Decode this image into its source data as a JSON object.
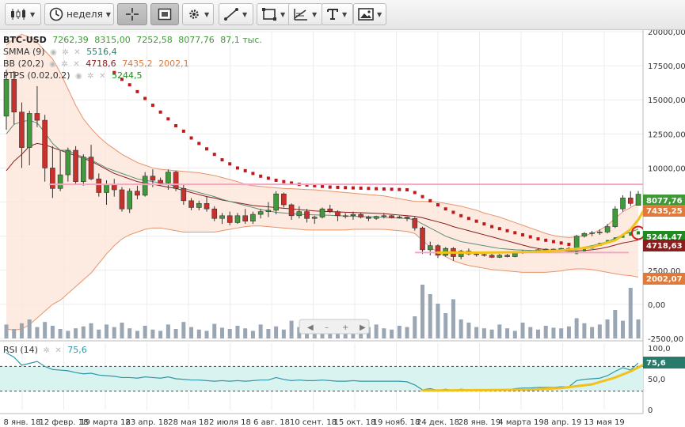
{
  "toolbar": {
    "period_label": "неделя",
    "icons": [
      "candles-icon",
      "clock-icon",
      "crosshair-icon",
      "frame-icon",
      "gear-icon",
      "pencil-line-icon",
      "rectangle-icon",
      "fibonacci-icon",
      "text-tool-icon",
      "image-icon"
    ]
  },
  "legend": {
    "symbol": "BTC-USD",
    "open": "7262,39",
    "high": "8315,00",
    "low": "7252,58",
    "close": "8077,76",
    "volume": "87,1 тыс.",
    "smma_name": "SMMA (9)",
    "smma_value": "5516,4",
    "bb_name": "BB (20,2)",
    "bb_mid": "4718,6",
    "bb_upper": "7435,2",
    "bb_lower": "2002,1",
    "ptps_name": "PTPS (0.02,0.2)",
    "ptps_value": "5244,5",
    "rsi_name": "RSI (14)",
    "rsi_value": "75,6"
  },
  "price_axis": {
    "ticks": [
      "20000,00",
      "17500,00",
      "15000,00",
      "12500,00",
      "10000,00",
      "7500,00",
      "5000,00",
      "2500,00",
      "0,00",
      "-2500,00"
    ],
    "tags": [
      {
        "text": "8077,76",
        "color": "#3d9a35"
      },
      {
        "text": "7435,25",
        "color": "#e07a3a"
      },
      {
        "text": "5244,47",
        "color": "#1f8a1f"
      },
      {
        "text": "4718,63",
        "color": "#8a1d1d"
      },
      {
        "text": "2002,07",
        "color": "#e07a3a"
      }
    ]
  },
  "rsi_axis": {
    "ticks": [
      "100,0",
      "50,0",
      "0"
    ],
    "tag": "75,6"
  },
  "time_axis": [
    "8 янв. 18",
    "12 февр. 18",
    "19 марта 18",
    "23 апр. 18",
    "28 мая 18",
    "2 июля 18",
    "6 авг. 18",
    "10 сент. 18",
    "15 окт. 18",
    "19 нояб. 18",
    "24 дек. 18",
    "28 янв. 19",
    "4 марта 19",
    "8 апр. 19",
    "13 мая 19"
  ],
  "colors": {
    "up": "#3e9a3a",
    "down": "#c9302c",
    "bb_band": "#e8936b",
    "bb_fill": "#fde6da",
    "bb_mid": "#8a1d1d",
    "smma": "#5a8f7a",
    "volume": "#9aa6b4",
    "rsi": "#2f97a8",
    "rsi_fill": "#d8f3f0",
    "pink_line": "#f4a7c4",
    "trend": "#f2c21b"
  },
  "chart_data": {
    "type": "candlestick",
    "title": "BTC-USD",
    "interval": "неделя",
    "ylim": [
      -2500,
      20000
    ],
    "candles": [
      [
        13800,
        17200,
        12800,
        16500
      ],
      [
        16500,
        17100,
        13200,
        14100
      ],
      [
        14100,
        14800,
        10000,
        11500
      ],
      [
        11500,
        14200,
        10200,
        14000
      ],
      [
        14000,
        16000,
        13000,
        13500
      ],
      [
        13500,
        13900,
        9000,
        10000
      ],
      [
        10000,
        11600,
        7800,
        8500
      ],
      [
        8500,
        11300,
        8300,
        9500
      ],
      [
        9500,
        11500,
        9000,
        11300
      ],
      [
        11300,
        11600,
        8800,
        9000
      ],
      [
        9000,
        11000,
        8700,
        10800
      ],
      [
        10800,
        11700,
        9100,
        9200
      ],
      [
        9200,
        9600,
        7900,
        8200
      ],
      [
        8200,
        9100,
        7300,
        8800
      ],
      [
        8800,
        9200,
        7900,
        8400
      ],
      [
        8400,
        8600,
        6800,
        7000
      ],
      [
        7000,
        8500,
        6700,
        8300
      ],
      [
        8300,
        8700,
        7700,
        8000
      ],
      [
        8000,
        9700,
        7900,
        9400
      ],
      [
        9400,
        9900,
        8600,
        9100
      ],
      [
        9100,
        9300,
        8700,
        8900
      ],
      [
        8900,
        9900,
        8400,
        9700
      ],
      [
        9700,
        9800,
        8300,
        8500
      ],
      [
        8500,
        8800,
        7300,
        7600
      ],
      [
        7600,
        7800,
        6900,
        7100
      ],
      [
        7100,
        7600,
        6900,
        7400
      ],
      [
        7400,
        7900,
        6800,
        7000
      ],
      [
        7000,
        7200,
        6100,
        6300
      ],
      [
        6300,
        6700,
        5900,
        6500
      ],
      [
        6500,
        6800,
        5800,
        6000
      ],
      [
        6000,
        6700,
        5900,
        6500
      ],
      [
        6500,
        7000,
        5900,
        6100
      ],
      [
        6100,
        6800,
        5900,
        6600
      ],
      [
        6600,
        7000,
        6300,
        6800
      ],
      [
        6800,
        7500,
        6400,
        6900
      ],
      [
        6900,
        8300,
        6600,
        8100
      ],
      [
        8100,
        8200,
        7100,
        7300
      ],
      [
        7300,
        7400,
        6200,
        6500
      ],
      [
        6500,
        7200,
        6300,
        6800
      ],
      [
        6800,
        7000,
        6000,
        6300
      ],
      [
        6300,
        6500,
        5900,
        6400
      ],
      [
        6400,
        7100,
        6300,
        7000
      ],
      [
        7000,
        7300,
        6700,
        6800
      ],
      [
        6800,
        6900,
        6100,
        6500
      ],
      [
        6500,
        6700,
        6300,
        6500
      ],
      [
        6500,
        6800,
        6200,
        6600
      ],
      [
        6600,
        6700,
        6300,
        6400
      ],
      [
        6400,
        6500,
        6100,
        6300
      ],
      [
        6300,
        6500,
        6200,
        6450
      ],
      [
        6450,
        6700,
        6300,
        6500
      ],
      [
        6500,
        6550,
        6300,
        6350
      ],
      [
        6350,
        6500,
        6300,
        6400
      ],
      [
        6400,
        6450,
        6100,
        6300
      ],
      [
        6300,
        6400,
        5400,
        5600
      ],
      [
        5600,
        5700,
        3700,
        4000
      ],
      [
        4000,
        4600,
        3600,
        4300
      ],
      [
        4300,
        4400,
        3400,
        3600
      ],
      [
        3600,
        4200,
        3500,
        4100
      ],
      [
        4100,
        4200,
        3200,
        3500
      ],
      [
        3500,
        4000,
        3300,
        3900
      ],
      [
        3900,
        4100,
        3600,
        3700
      ],
      [
        3700,
        3800,
        3500,
        3650
      ],
      [
        3650,
        3800,
        3500,
        3600
      ],
      [
        3600,
        3700,
        3400,
        3450
      ],
      [
        3450,
        3700,
        3400,
        3600
      ],
      [
        3600,
        3700,
        3450,
        3500
      ],
      [
        3500,
        3900,
        3450,
        3800
      ],
      [
        3800,
        4000,
        3700,
        3850
      ],
      [
        3850,
        3950,
        3800,
        3900
      ],
      [
        3900,
        4100,
        3850,
        4000
      ],
      [
        4000,
        4100,
        3900,
        4050
      ],
      [
        4050,
        4100,
        3950,
        4000
      ],
      [
        4000,
        4150,
        3950,
        4100
      ],
      [
        4100,
        4200,
        3950,
        4050
      ],
      [
        4050,
        5100,
        4000,
        5000
      ],
      [
        5000,
        5300,
        4900,
        5200
      ],
      [
        5200,
        5400,
        5000,
        5250
      ],
      [
        5250,
        5500,
        5100,
        5300
      ],
      [
        5300,
        5900,
        5200,
        5700
      ],
      [
        5700,
        7200,
        5600,
        7000
      ],
      [
        7000,
        8000,
        6800,
        7800
      ],
      [
        7800,
        8300,
        7200,
        7400
      ],
      [
        7262.39,
        8315,
        7252.58,
        8077.76
      ]
    ],
    "volumes": [
      22,
      15,
      24,
      30,
      18,
      26,
      20,
      15,
      12,
      16,
      19,
      24,
      14,
      22,
      18,
      25,
      16,
      12,
      20,
      14,
      12,
      22,
      15,
      26,
      18,
      14,
      12,
      23,
      17,
      15,
      20,
      16,
      12,
      22,
      15,
      19,
      14,
      28,
      18,
      21,
      17,
      16,
      12,
      20,
      15,
      12,
      14,
      18,
      22,
      16,
      14,
      20,
      18,
      35,
      85,
      70,
      55,
      40,
      62,
      30,
      25,
      18,
      16,
      14,
      22,
      16,
      12,
      25,
      18,
      14,
      20,
      17,
      16,
      19,
      32,
      24,
      18,
      22,
      30,
      45,
      28,
      80,
      30
    ],
    "volume_range": [
      0,
      100
    ],
    "smma": [
      12500,
      13200,
      13400,
      13500,
      13300,
      12600,
      11800,
      11300,
      11300,
      11000,
      10800,
      10600,
      10300,
      10000,
      9800,
      9600,
      9400,
      9200,
      9100,
      9000,
      8900,
      8800,
      8650,
      8500,
      8350,
      8200,
      8050,
      7900,
      7700,
      7550,
      7400,
      7250,
      7100,
      6950,
      6850,
      6750,
      6700,
      6650,
      6600,
      6580,
      6560,
      6550,
      6530,
      6500,
      6480,
      6460,
      6440,
      6420,
      6400,
      6380,
      6350,
      6320,
      6300,
      6200,
      5900,
      5600,
      5300,
      5000,
      4800,
      4600,
      4500,
      4400,
      4300,
      4200,
      4100,
      4050,
      4000,
      3980,
      3960,
      3950,
      3950,
      3960,
      3970,
      3990,
      4100,
      4200,
      4300,
      4450,
      4600,
      4850,
      5100,
      5300,
      5516.4
    ],
    "bb_mid": [
      9800,
      10500,
      11000,
      11600,
      11800,
      11700,
      11500,
      11300,
      11100,
      10900,
      10700,
      10500,
      10200,
      9900,
      9600,
      9400,
      9200,
      9000,
      8900,
      8800,
      8700,
      8600,
      8500,
      8350,
      8200,
      8050,
      7900,
      7800,
      7650,
      7550,
      7450,
      7350,
      7250,
      7200,
      7150,
      7100,
      7050,
      7000,
      6950,
      6900,
      6850,
      6820,
      6800,
      6780,
      6760,
      6740,
      6720,
      6700,
      6680,
      6650,
      6600,
      6550,
      6500,
      6450,
      6350,
      6200,
      6050,
      5900,
      5700,
      5550,
      5400,
      5250,
      5100,
      4950,
      4800,
      4650,
      4500,
      4350,
      4200,
      4100,
      4000,
      3950,
      3920,
      3900,
      3920,
      3950,
      4000,
      4080,
      4200,
      4350,
      4500,
      4600,
      4718.6
    ],
    "bb_upper": [
      19000,
      19500,
      19800,
      19600,
      19200,
      18600,
      18000,
      17000,
      15800,
      14600,
      13600,
      12900,
      12300,
      11800,
      11400,
      11000,
      10700,
      10400,
      10200,
      10000,
      9900,
      9850,
      9800,
      9750,
      9700,
      9650,
      9550,
      9450,
      9300,
      9150,
      9000,
      8800,
      8700,
      8650,
      8600,
      8550,
      8500,
      8480,
      8450,
      8420,
      8400,
      8350,
      8300,
      8250,
      8200,
      8150,
      8100,
      8050,
      8000,
      7950,
      7850,
      7750,
      7650,
      7550,
      7550,
      7550,
      7500,
      7400,
      7300,
      7200,
      7050,
      6900,
      6700,
      6550,
      6400,
      6200,
      6000,
      5800,
      5600,
      5400,
      5200,
      5050,
      4950,
      4900,
      4950,
      5050,
      5200,
      5450,
      5800,
      6300,
      6800,
      7100,
      7435.2
    ],
    "bb_lower": [
      -1800,
      -1900,
      -1800,
      -1500,
      -1000,
      -500,
      0,
      300,
      800,
      1300,
      1800,
      2300,
      3000,
      3700,
      4300,
      4800,
      5100,
      5300,
      5500,
      5600,
      5600,
      5500,
      5400,
      5300,
      5300,
      5300,
      5300,
      5300,
      5400,
      5500,
      5600,
      5700,
      5750,
      5750,
      5700,
      5650,
      5600,
      5550,
      5500,
      5450,
      5450,
      5450,
      5450,
      5450,
      5450,
      5500,
      5500,
      5500,
      5500,
      5500,
      5450,
      5400,
      5350,
      5200,
      4700,
      4200,
      3800,
      3500,
      3200,
      3000,
      2850,
      2750,
      2650,
      2550,
      2500,
      2450,
      2400,
      2350,
      2350,
      2350,
      2350,
      2400,
      2450,
      2550,
      2600,
      2600,
      2550,
      2450,
      2350,
      2250,
      2150,
      2100,
      2002.1
    ],
    "psar": [
      null,
      null,
      null,
      null,
      null,
      null,
      null,
      null,
      null,
      null,
      null,
      null,
      null,
      null,
      17000,
      16500,
      16100,
      15600,
      15100,
      14600,
      14100,
      13600,
      13100,
      12700,
      12200,
      11800,
      11400,
      11000,
      10600,
      10300,
      10000,
      9800,
      9600,
      9400,
      9250,
      9100,
      9000,
      8900,
      8800,
      8750,
      8700,
      8650,
      8600,
      8580,
      8560,
      8540,
      8520,
      8500,
      8480,
      8460,
      8440,
      8420,
      8400,
      8200,
      7900,
      7600,
      7300,
      7000,
      6750,
      6500,
      6300,
      6100,
      5900,
      5700,
      5550,
      5400,
      5250,
      5100,
      4950,
      4800,
      4700,
      4600,
      4500,
      4400,
      3800,
      4000,
      4200,
      4400,
      4600,
      4800,
      5000,
      5150,
      5244.5
    ],
    "pink_levels": [
      8800,
      3800
    ],
    "rsi_range": [
      0,
      100
    ],
    "rsi_levels": [
      30,
      70
    ],
    "rsi": [
      92,
      85,
      72,
      75,
      78,
      70,
      65,
      64,
      63,
      60,
      58,
      59,
      56,
      55,
      54,
      52,
      52,
      51,
      53,
      52,
      51,
      53,
      50,
      49,
      48,
      48,
      47,
      46,
      47,
      46,
      47,
      46,
      47,
      48,
      48,
      52,
      49,
      47,
      48,
      47,
      47,
      48,
      47,
      46,
      46,
      47,
      46,
      46,
      46,
      46,
      46,
      46,
      45,
      40,
      32,
      34,
      31,
      33,
      31,
      33,
      32,
      32,
      32,
      31,
      32,
      32,
      34,
      35,
      35,
      36,
      36,
      36,
      37,
      37,
      47,
      49,
      50,
      51,
      55,
      62,
      68,
      64,
      75.6
    ]
  }
}
